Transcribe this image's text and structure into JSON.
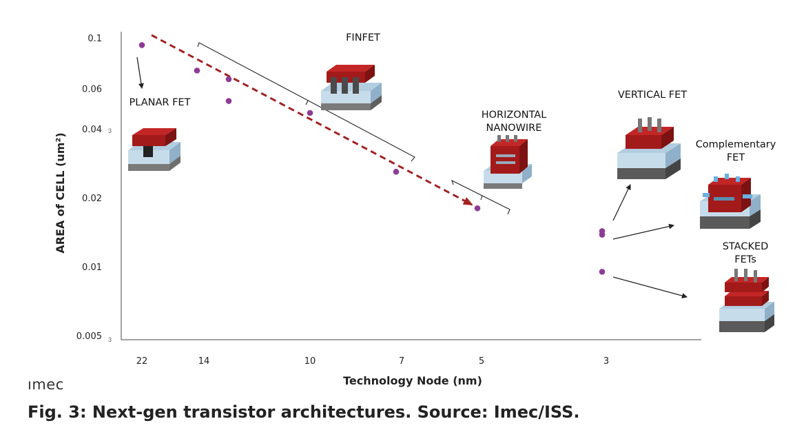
{
  "caption": "Fig. 3: Next-gen transistor architectures. Source: Imec/ISS.",
  "logo_text": "ımec",
  "chart_data": {
    "type": "scatter",
    "xlabel": "Technology Node (nm)",
    "ylabel": "AREA of CELL (um²)",
    "y_scale": "log",
    "y_ticks": [
      0.1,
      0.06,
      0.04,
      0.02,
      0.01,
      0.005
    ],
    "y_tick_labels": [
      "0.1",
      "0.06",
      "0.04",
      "0.02",
      "0.01",
      "0.005"
    ],
    "x_categories": [
      "22",
      "14",
      "10",
      "7",
      "5",
      "3"
    ],
    "grid": false,
    "color": "#8e3b96",
    "trend_color": "#a32222",
    "points": [
      {
        "x": "22",
        "y": 0.093
      },
      {
        "x": "14",
        "y": 0.072
      },
      {
        "x": "14",
        "y": 0.066
      },
      {
        "x": "14",
        "y": 0.053
      },
      {
        "x": "10",
        "y": 0.047
      },
      {
        "x": "7",
        "y": 0.026
      },
      {
        "x": "5",
        "y": 0.018
      },
      {
        "x": "3",
        "y": 0.0143
      },
      {
        "x": "3",
        "y": 0.0138
      },
      {
        "x": "3",
        "y": 0.0095
      }
    ],
    "annotations": [
      {
        "id": "planar",
        "lines": [
          "PLANAR FET"
        ]
      },
      {
        "id": "finfet",
        "lines": [
          "FINFET"
        ]
      },
      {
        "id": "nanowire",
        "lines": [
          "HORIZONTAL",
          "NANOWIRE"
        ]
      },
      {
        "id": "vertical",
        "lines": [
          "VERTICAL FET"
        ]
      },
      {
        "id": "cfet",
        "lines": [
          "Complementary",
          "FET"
        ]
      },
      {
        "id": "stacked",
        "lines": [
          "STACKED",
          "FETs"
        ]
      }
    ]
  }
}
